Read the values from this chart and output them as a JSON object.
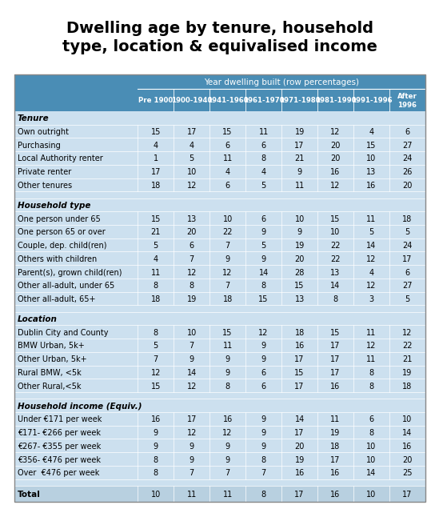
{
  "title": "Dwelling age by tenure, household\ntype, location & equivalised income",
  "col_header_main": "Year dwelling built (row percentages)",
  "col_headers": [
    "Pre 1900",
    "1900-1940",
    "1941-1960",
    "1961-1970",
    "1971-1980",
    "1981-1990",
    "1991-1996",
    "After\n1996"
  ],
  "sections": [
    {
      "section_title": "Tenure",
      "rows": [
        {
          "label": "Own outright",
          "values": [
            15,
            17,
            15,
            11,
            19,
            12,
            4,
            6
          ]
        },
        {
          "label": "Purchasing",
          "values": [
            4,
            4,
            6,
            6,
            17,
            20,
            15,
            27
          ]
        },
        {
          "label": "Local Authority renter",
          "values": [
            1,
            5,
            11,
            8,
            21,
            20,
            10,
            24
          ]
        },
        {
          "label": "Private renter",
          "values": [
            17,
            10,
            4,
            4,
            9,
            16,
            13,
            26
          ]
        },
        {
          "label": "Other tenures",
          "values": [
            18,
            12,
            6,
            5,
            11,
            12,
            16,
            20
          ]
        }
      ]
    },
    {
      "section_title": "Household type",
      "rows": [
        {
          "label": "One person under 65",
          "values": [
            15,
            13,
            10,
            6,
            10,
            15,
            11,
            18
          ]
        },
        {
          "label": "One person 65 or over",
          "values": [
            21,
            20,
            22,
            9,
            9,
            10,
            5,
            5
          ]
        },
        {
          "label": "Couple, dep. child(ren)",
          "values": [
            5,
            6,
            7,
            5,
            19,
            22,
            14,
            24
          ]
        },
        {
          "label": "Others with children",
          "values": [
            4,
            7,
            9,
            9,
            20,
            22,
            12,
            17
          ]
        },
        {
          "label": "Parent(s), grown child(ren)",
          "values": [
            11,
            12,
            12,
            14,
            28,
            13,
            4,
            6
          ]
        },
        {
          "label": "Other all-adult, under 65",
          "values": [
            8,
            8,
            7,
            8,
            15,
            14,
            12,
            27
          ]
        },
        {
          "label": "Other all-adult, 65+",
          "values": [
            18,
            19,
            18,
            15,
            13,
            8,
            3,
            5
          ]
        }
      ]
    },
    {
      "section_title": "Location",
      "rows": [
        {
          "label": "Dublin City and County",
          "values": [
            8,
            10,
            15,
            12,
            18,
            15,
            11,
            12
          ]
        },
        {
          "label": "BMW Urban, 5k+",
          "values": [
            5,
            7,
            11,
            9,
            16,
            17,
            12,
            22
          ]
        },
        {
          "label": "Other Urban, 5k+",
          "values": [
            7,
            9,
            9,
            9,
            17,
            17,
            11,
            21
          ]
        },
        {
          "label": "Rural BMW, <5k",
          "values": [
            12,
            14,
            9,
            6,
            15,
            17,
            8,
            19
          ]
        },
        {
          "label": "Other Rural,<5k",
          "values": [
            15,
            12,
            8,
            6,
            17,
            16,
            8,
            18
          ]
        }
      ]
    },
    {
      "section_title": "Household income (Equiv.)",
      "rows": [
        {
          "label": "Under €171 per week",
          "values": [
            16,
            17,
            16,
            9,
            14,
            11,
            6,
            10
          ]
        },
        {
          "label": "€171- €266 per week",
          "values": [
            9,
            12,
            12,
            9,
            17,
            19,
            8,
            14
          ]
        },
        {
          "label": "€267- €355 per week",
          "values": [
            9,
            9,
            9,
            9,
            20,
            18,
            10,
            16
          ]
        },
        {
          "label": "€356- €476 per week",
          "values": [
            8,
            9,
            9,
            8,
            19,
            17,
            10,
            20
          ]
        },
        {
          "label": "Over  €476 per week",
          "values": [
            8,
            7,
            7,
            7,
            16,
            16,
            14,
            25
          ]
        }
      ]
    }
  ],
  "total_row": {
    "label": "Total",
    "values": [
      10,
      11,
      11,
      8,
      17,
      16,
      10,
      17
    ]
  },
  "header_bg": "#4a8db5",
  "header_text": "#ffffff",
  "body_bg": "#cce0ef",
  "section_title_color": "#000000",
  "total_bg": "#b8d0e0",
  "border_color": "#aaaaaa",
  "title_bg": "#ffffff",
  "title_color": "#000000",
  "table_border": "#888888"
}
